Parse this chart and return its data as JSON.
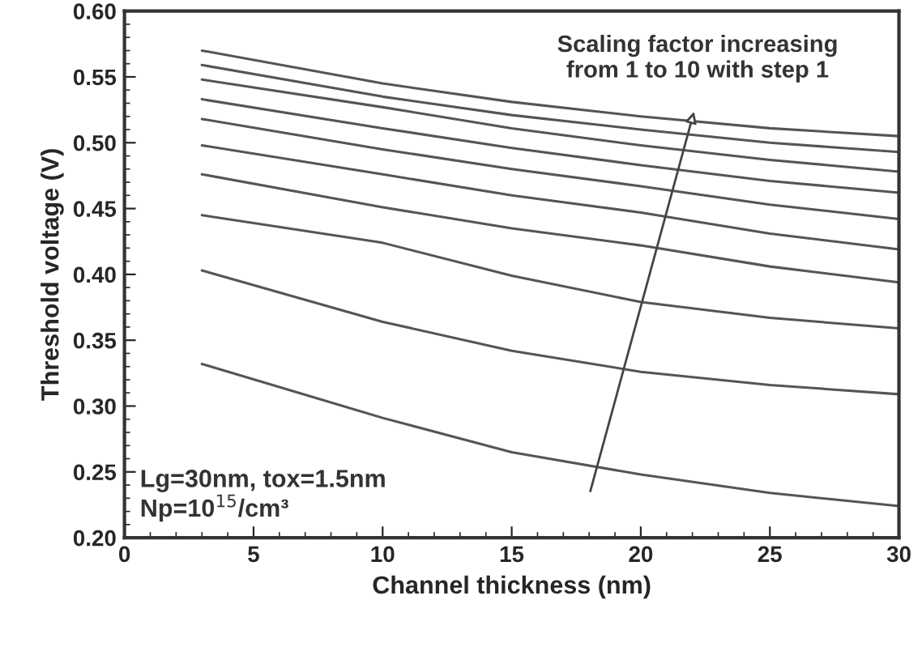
{
  "chart_data": {
    "type": "line",
    "xlabel": "Channel thickness (nm)",
    "ylabel": "Threshold voltage (V)",
    "x": [
      3,
      10,
      15,
      20,
      25,
      30
    ],
    "series": [
      {
        "color": "#555555",
        "values": [
          0.57,
          0.545,
          0.531,
          0.52,
          0.511,
          0.505
        ]
      },
      {
        "color": "#555555",
        "values": [
          0.559,
          0.535,
          0.521,
          0.51,
          0.5,
          0.493
        ]
      },
      {
        "color": "#555555",
        "values": [
          0.548,
          0.527,
          0.511,
          0.498,
          0.487,
          0.478
        ]
      },
      {
        "color": "#555555",
        "values": [
          0.533,
          0.511,
          0.496,
          0.483,
          0.471,
          0.462
        ]
      },
      {
        "color": "#555555",
        "values": [
          0.518,
          0.495,
          0.48,
          0.467,
          0.453,
          0.442
        ]
      },
      {
        "color": "#555555",
        "values": [
          0.498,
          0.476,
          0.46,
          0.447,
          0.431,
          0.419
        ]
      },
      {
        "color": "#555555",
        "values": [
          0.476,
          0.451,
          0.435,
          0.422,
          0.406,
          0.394
        ]
      },
      {
        "color": "#555555",
        "values": [
          0.445,
          0.424,
          0.399,
          0.379,
          0.367,
          0.359
        ]
      },
      {
        "color": "#555555",
        "values": [
          0.403,
          0.364,
          0.342,
          0.326,
          0.316,
          0.309
        ]
      },
      {
        "color": "#555555",
        "values": [
          0.332,
          0.291,
          0.265,
          0.248,
          0.234,
          0.224
        ]
      }
    ],
    "xlim": [
      0,
      30
    ],
    "xticks": [
      0,
      5,
      10,
      15,
      20,
      25,
      30
    ],
    "ylim": [
      0.2,
      0.6
    ],
    "yticks": [
      {
        "value": 0.2,
        "label": "0.20"
      },
      {
        "value": 0.25,
        "label": "0.25"
      },
      {
        "value": 0.3,
        "label": "0.30"
      },
      {
        "value": 0.35,
        "label": "0.35"
      },
      {
        "value": 0.4,
        "label": "0.40"
      },
      {
        "value": 0.45,
        "label": "0.45"
      },
      {
        "value": 0.5,
        "label": "0.50"
      },
      {
        "value": 0.55,
        "label": "0.55"
      },
      {
        "value": 0.6,
        "label": "0.60"
      }
    ],
    "annotations": [
      "Scaling factor increasing\nfrom 1 to 10 with step 1",
      "Lg=30nm, tox=1.5nm\nNp=10$^{15}$/cm³"
    ],
    "grid": false,
    "legend": false,
    "line_style": "solid",
    "marker": "none"
  }
}
